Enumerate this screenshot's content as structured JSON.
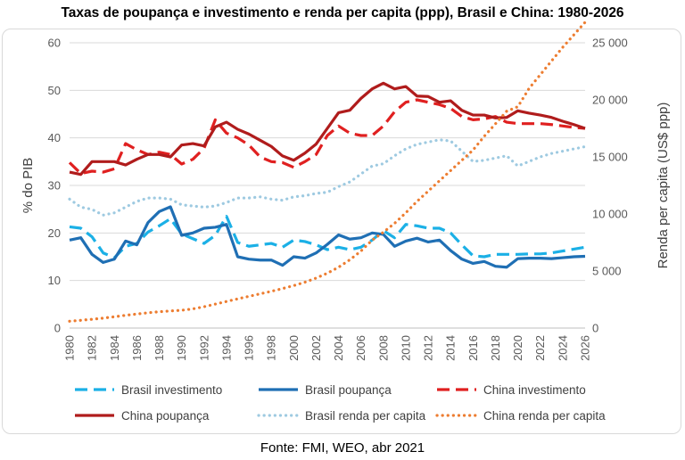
{
  "chart_data": {
    "type": "line",
    "title": "Taxas de poupança e investimento e renda per capita (ppp), Brasil e China: 1980-2026",
    "source": "Fonte: FMI, WEO, abr 2021",
    "ylabel": "% do PIB",
    "y2label": "Renda per capita (US$ ppp)",
    "ylim": [
      0,
      60
    ],
    "y2lim": [
      0,
      25000
    ],
    "y_ticks": [
      "0",
      "10",
      "20",
      "30",
      "40",
      "50",
      "60"
    ],
    "y2_ticks": [
      "0",
      "5 000",
      "10 000",
      "15 000",
      "20 000",
      "25 000"
    ],
    "x_ticks": [
      "1980",
      "1982",
      "1984",
      "1986",
      "1988",
      "1990",
      "1992",
      "1994",
      "1996",
      "1998",
      "2000",
      "2002",
      "2004",
      "2006",
      "2008",
      "2010",
      "2012",
      "2014",
      "2016",
      "2018",
      "2020",
      "2022",
      "2024",
      "2026"
    ],
    "grid": true,
    "legend_position": "bottom",
    "x": [
      1980,
      1981,
      1982,
      1983,
      1984,
      1985,
      1986,
      1987,
      1988,
      1989,
      1990,
      1991,
      1992,
      1993,
      1994,
      1995,
      1996,
      1997,
      1998,
      1999,
      2000,
      2001,
      2002,
      2003,
      2004,
      2005,
      2006,
      2007,
      2008,
      2009,
      2010,
      2011,
      2012,
      2013,
      2014,
      2015,
      2016,
      2017,
      2018,
      2019,
      2020,
      2021,
      2022,
      2023,
      2024,
      2025,
      2026
    ],
    "series": [
      {
        "name": "Brasil investimento",
        "axis": "left",
        "color": "#1bb0e6",
        "style": "dash",
        "values": [
          21.3,
          21.0,
          19.2,
          15.8,
          14.8,
          17.2,
          17.8,
          20.2,
          21.5,
          23.0,
          19.8,
          18.8,
          17.8,
          19.5,
          23.5,
          18.0,
          17.2,
          17.5,
          17.8,
          17.0,
          18.5,
          18.2,
          17.5,
          16.5,
          17.0,
          16.5,
          17.0,
          18.5,
          20.5,
          19.0,
          21.8,
          21.5,
          21.0,
          21.0,
          20.0,
          17.5,
          15.2,
          15.0,
          15.5,
          15.5,
          15.5,
          15.6,
          15.6,
          15.8,
          16.2,
          16.6,
          17.0
        ]
      },
      {
        "name": "Brasil poupança",
        "axis": "left",
        "color": "#1f6fb4",
        "style": "solid",
        "values": [
          18.5,
          19.0,
          15.5,
          13.8,
          14.5,
          18.3,
          17.5,
          22.2,
          24.5,
          25.5,
          19.5,
          20.0,
          21.0,
          21.2,
          21.8,
          15.0,
          14.5,
          14.3,
          14.3,
          13.2,
          15.0,
          14.7,
          15.8,
          17.6,
          19.6,
          18.7,
          19.0,
          20.0,
          19.7,
          17.2,
          18.3,
          18.9,
          18.1,
          18.5,
          16.3,
          14.5,
          13.6,
          14.0,
          13.0,
          12.8,
          14.6,
          14.7,
          14.7,
          14.6,
          14.8,
          15.0,
          15.1
        ]
      },
      {
        "name": "China investimento",
        "axis": "left",
        "color": "#e02020",
        "style": "dash",
        "values": [
          34.8,
          32.5,
          33.0,
          32.8,
          33.5,
          38.8,
          37.5,
          36.5,
          37.0,
          36.5,
          34.5,
          35.5,
          37.8,
          43.8,
          41.0,
          40.0,
          38.5,
          36.0,
          35.0,
          34.8,
          33.8,
          35.0,
          36.5,
          40.5,
          42.5,
          41.0,
          40.5,
          40.5,
          42.5,
          45.5,
          47.5,
          48.0,
          47.5,
          47.0,
          46.2,
          44.5,
          43.8,
          44.0,
          44.5,
          43.3,
          43.0,
          43.0,
          43.0,
          42.8,
          42.5,
          42.2,
          42.0
        ]
      },
      {
        "name": "China poupança",
        "axis": "left",
        "color": "#b01c1c",
        "style": "solid",
        "values": [
          32.8,
          32.3,
          35.0,
          35.0,
          35.0,
          34.3,
          35.5,
          36.5,
          36.5,
          36.0,
          38.5,
          38.8,
          38.3,
          42.3,
          43.3,
          41.8,
          40.8,
          39.5,
          38.2,
          36.2,
          35.3,
          36.8,
          38.7,
          42.0,
          45.3,
          45.8,
          48.3,
          50.3,
          51.5,
          50.3,
          50.8,
          48.8,
          48.7,
          47.5,
          47.8,
          45.8,
          44.8,
          44.8,
          44.2,
          44.3,
          45.7,
          45.2,
          44.8,
          44.3,
          43.5,
          42.8,
          42.0
        ]
      },
      {
        "name": "Brasil renda per capita",
        "axis": "right",
        "color": "#9ecae1",
        "style": "dot",
        "values": [
          11300,
          10600,
          10400,
          9900,
          10100,
          10600,
          11100,
          11400,
          11400,
          11300,
          10800,
          10700,
          10600,
          10700,
          11000,
          11400,
          11400,
          11500,
          11300,
          11200,
          11500,
          11600,
          11800,
          11900,
          12400,
          12800,
          13500,
          14200,
          14400,
          15100,
          15700,
          16100,
          16300,
          16500,
          16400,
          15500,
          14600,
          14700,
          14900,
          15100,
          14200,
          14600,
          15000,
          15300,
          15500,
          15700,
          15900
        ]
      },
      {
        "name": "China renda per capita",
        "axis": "right",
        "color": "#ed7d31",
        "style": "dot",
        "values": [
          600,
          680,
          770,
          870,
          990,
          1120,
          1230,
          1340,
          1430,
          1500,
          1560,
          1680,
          1870,
          2100,
          2330,
          2560,
          2780,
          3000,
          3220,
          3460,
          3720,
          4020,
          4380,
          4810,
          5330,
          5980,
          6750,
          7710,
          8400,
          9180,
          10100,
          11100,
          12000,
          12900,
          13800,
          14700,
          15600,
          16800,
          17900,
          19000,
          19400,
          21000,
          22200,
          23400,
          24600,
          25700,
          26800
        ]
      }
    ]
  }
}
